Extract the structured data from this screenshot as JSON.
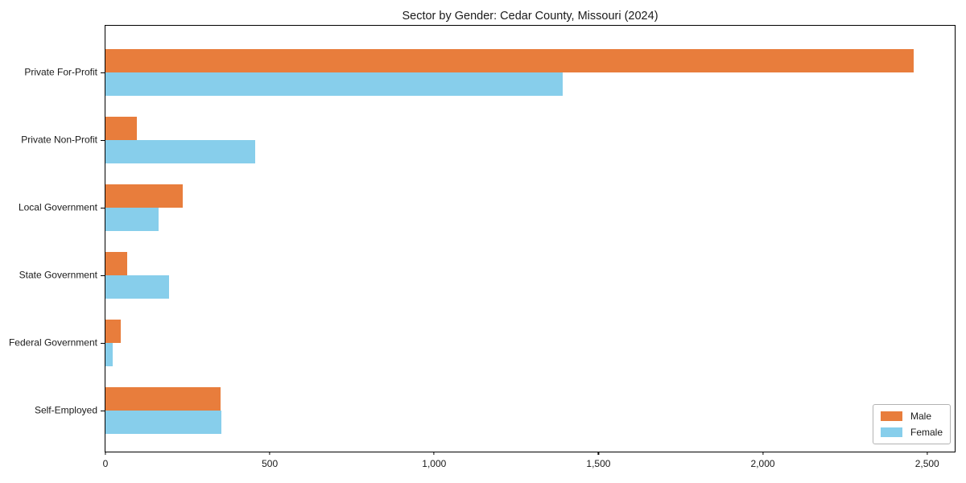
{
  "chart_data": {
    "type": "bar",
    "orientation": "horizontal",
    "title": "Sector by Gender: Cedar County, Missouri (2024)",
    "categories": [
      "Private For-Profit",
      "Private Non-Profit",
      "Local Government",
      "State Government",
      "Federal Government",
      "Self-Employed"
    ],
    "series": [
      {
        "name": "Male",
        "color": "#e87d3c",
        "values": [
          2460,
          95,
          235,
          66,
          46,
          350
        ]
      },
      {
        "name": "Female",
        "color": "#87ceeb",
        "values": [
          1390,
          455,
          161,
          193,
          22,
          352
        ]
      }
    ],
    "xlim": [
      0,
      2584
    ],
    "x_ticks": [
      0,
      500,
      1000,
      1500,
      2000,
      2500
    ],
    "x_tick_labels": [
      "0",
      "500",
      "1,000",
      "1,500",
      "2,000",
      "2,500"
    ],
    "legend": {
      "position": "lower right"
    },
    "grid": false,
    "background": "#ffffff",
    "spine_color": "#000000"
  }
}
